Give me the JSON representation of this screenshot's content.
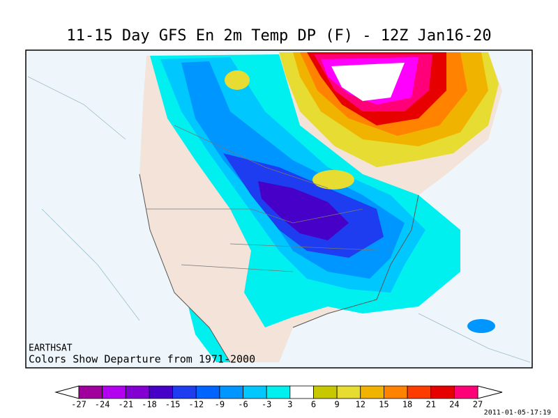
{
  "header": {
    "title": "11-15 Day GFS En 2m Temp DP (F) - 12Z Jan16-20"
  },
  "map": {
    "credit": "EARTHSAT",
    "note": "Colors Show Departure from 1971-2000"
  },
  "colorbar": {
    "labels": [
      -27,
      -24,
      -21,
      -18,
      -15,
      -12,
      -9,
      -6,
      -3,
      3,
      6,
      9,
      12,
      15,
      18,
      21,
      24,
      27
    ],
    "colors": [
      "#a0009b",
      "#b400f0",
      "#8200d2",
      "#4600c8",
      "#1e3cf0",
      "#0064ff",
      "#0096ff",
      "#00c8ff",
      "#00f0f0",
      "#ffffff",
      "#c8c800",
      "#e6dc32",
      "#f0b400",
      "#ff8200",
      "#ff3c00",
      "#e60000",
      "#ff0078",
      "#ff00ff"
    ]
  },
  "timestamp": "2011-01-05-17:19"
}
